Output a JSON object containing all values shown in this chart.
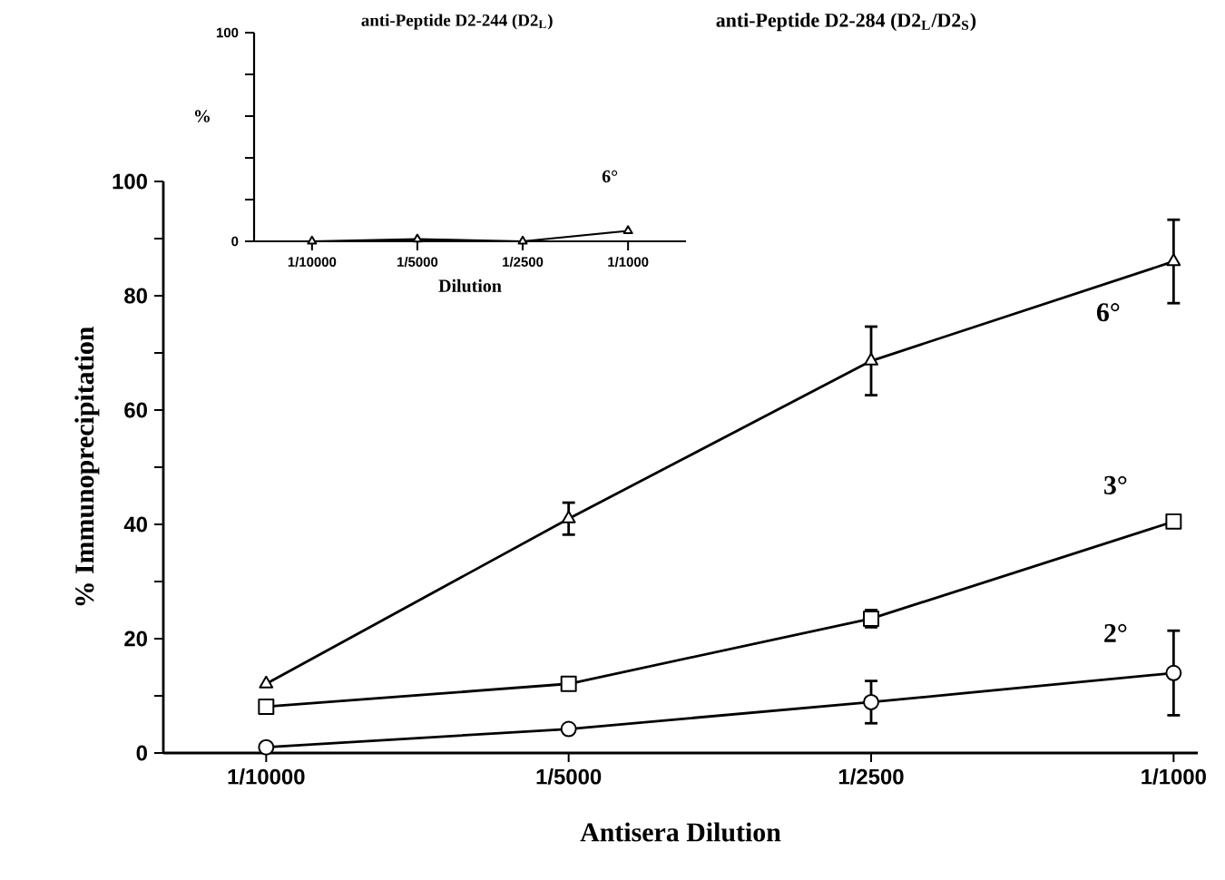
{
  "chart_data": [
    {
      "type": "line",
      "title": "anti-Peptide D2-284 (D2$_{L}$/D2$_{S}$)",
      "xlabel": "Antisera  Dilution",
      "ylabel": "% Immunoprecipitation",
      "categories": [
        "1/10000",
        "1/5000",
        "1/2500",
        "1/1000"
      ],
      "ylim": [
        0,
        100
      ],
      "yticks": [
        0,
        {
          "value": 10,
          "label": null
        },
        20,
        {
          "value": 30,
          "label": null
        },
        40,
        {
          "value": 50,
          "label": null
        },
        60,
        {
          "value": 70,
          "label": null
        },
        80,
        {
          "value": 90,
          "label": null
        },
        100
      ],
      "series": [
        {
          "name": "6°",
          "color": "#000000",
          "marker": "triangle",
          "values": [
            12.1,
            41,
            68.6,
            86
          ],
          "errors": [
            null,
            2.8,
            6,
            7.3
          ]
        },
        {
          "name": "3°",
          "color": "#000000",
          "marker": "square",
          "values": [
            8.1,
            12.1,
            23.5,
            40.5
          ],
          "errors": [
            null,
            null,
            1.5,
            null
          ]
        },
        {
          "name": "2°",
          "color": "#000000",
          "marker": "circle",
          "values": [
            1,
            4.2,
            8.9,
            14
          ],
          "errors": [
            null,
            null,
            3.7,
            7.4
          ]
        }
      ]
    },
    {
      "type": "line",
      "title": "anti-Peptide D2-244 (D2$_{L}$)",
      "xlabel": "Dilution",
      "ylabel": "%",
      "categories": [
        "1/10000",
        "1/5000",
        "1/2500",
        "1/1000"
      ],
      "ylim": [
        0,
        100
      ],
      "yticks": [
        0,
        {
          "value": 20,
          "label": null
        },
        {
          "value": 40,
          "label": null
        },
        {
          "value": 60,
          "label": null
        },
        {
          "value": 80,
          "label": null
        },
        100
      ],
      "series": [
        {
          "name": "6°",
          "color": "#000000",
          "marker": "triangle",
          "values": [
            0,
            1,
            0,
            5
          ]
        }
      ]
    }
  ]
}
